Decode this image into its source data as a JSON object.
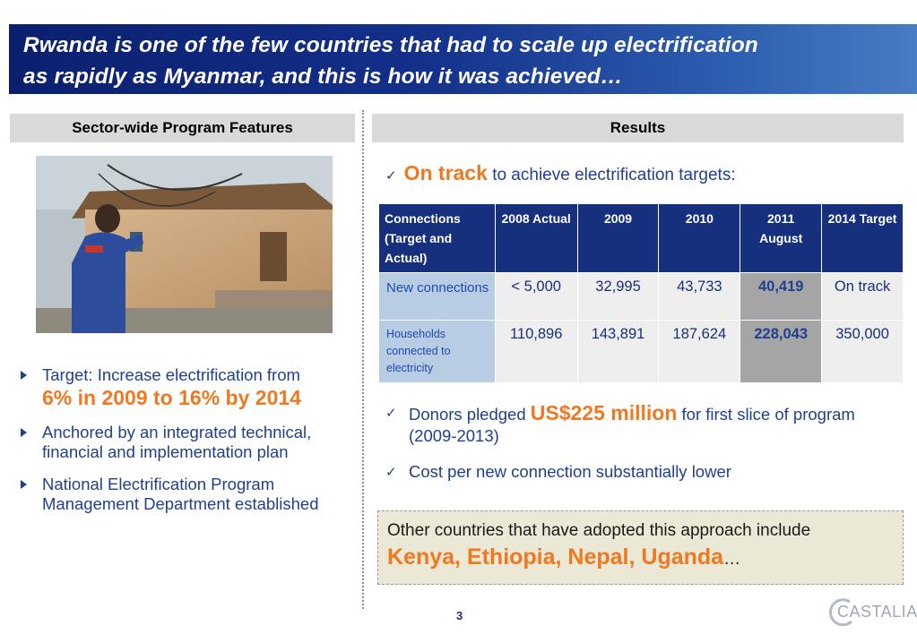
{
  "title": {
    "line1": "Rwanda is one of the few countries that had to scale up electrification",
    "line2": "as rapidly as Myanmar, and this is how it was achieved…"
  },
  "left": {
    "header": "Sector-wide Program Features",
    "bullets": [
      {
        "text": "Target: Increase electrification from",
        "highlight": "6%  in 2009 to 16% by 2014"
      },
      {
        "text": "Anchored by  an integrated technical, financial and implementation plan"
      },
      {
        "text": "National Electrification Program Management Department established"
      }
    ]
  },
  "right": {
    "header": "Results",
    "on_track": {
      "highlight": "On track",
      "text": "to achieve electrification targets:"
    },
    "table": {
      "headers": [
        "Connections (Target and Actual)",
        "2008 Actual",
        "2009",
        "2010",
        "2011 August",
        "2014 Target"
      ],
      "rows": [
        {
          "label": "New connections",
          "values": [
            "< 5,000",
            "32,995",
            "43,733",
            "40,419",
            "On track"
          ]
        },
        {
          "label": "Households connected to electricity",
          "values": [
            "110,896",
            "143,891",
            "187,624",
            "228,043",
            "350,000"
          ]
        }
      ]
    },
    "checks": [
      {
        "before": "Donors pledged",
        "highlight": "US$225 million",
        "after": "for first slice of program (2009-2013)"
      },
      {
        "text": "Cost per new connection substantially lower"
      }
    ],
    "callout": {
      "text": "Other countries that have adopted this approach include",
      "countries": "Kenya, Ethiopia, Nepal, Uganda",
      "ellipsis": "…"
    }
  },
  "footer": {
    "page_number": "3",
    "logo_text": "CASTALIA"
  },
  "colors": {
    "title_bar": "#13308a",
    "accent_orange": "#f07820",
    "text_blue": "#1f3f91",
    "table_header": "#17307d",
    "table_highlight": "#a5a5a5"
  }
}
